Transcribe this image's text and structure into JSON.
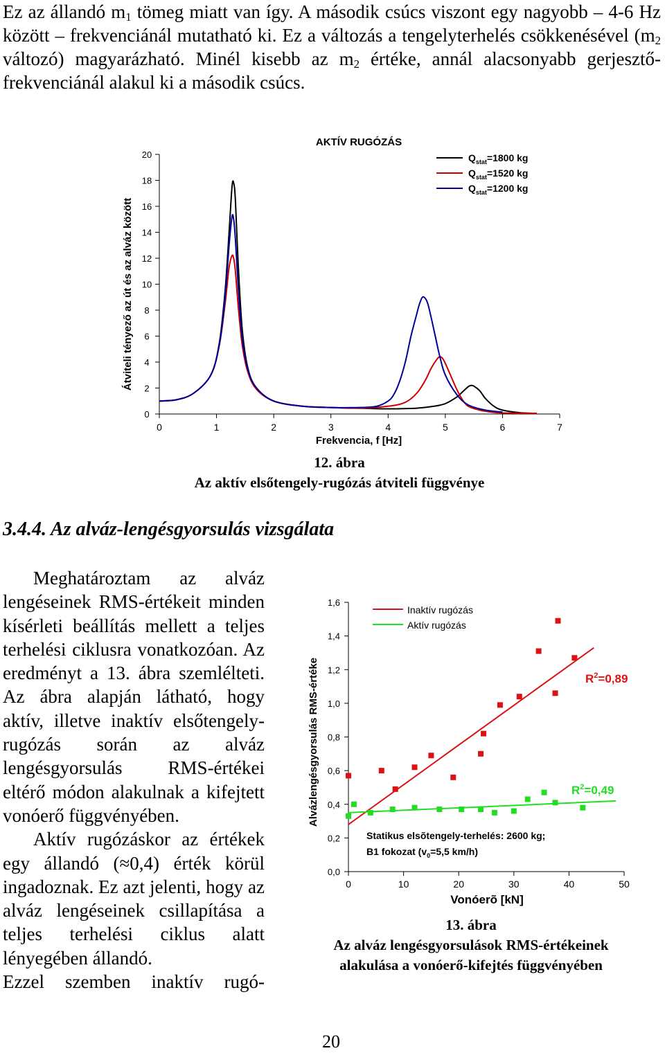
{
  "intro": {
    "p1_a": "Ez az állandó m",
    "p1_sub1": "1",
    "p1_b": " tömeg miatt van így. A második csúcs viszont egy nagyobb – 4-6 Hz között – frekvenciánál mutatható ki. Ez a változás a tengelyterhelés csökkenésével (m",
    "p1_sub2": "2",
    "p1_c": " változó) magyarázható. Minél kisebb az m",
    "p1_sub3": "2",
    "p1_d": " értéke, annál alacsonyabb gerjesztő-frekvenciánál alakul ki a második csúcs."
  },
  "fig12": {
    "caption_num": "12. ábra",
    "caption_title": "Az aktív elsőtengely-rugózás átviteli függvénye"
  },
  "fig13": {
    "caption_num": "13. ábra",
    "caption_line1": "Az alváz lengésgyorsulások RMS-értékeinek",
    "caption_line2": "alakulása a vonóerő-kifejtés függvényében"
  },
  "section": {
    "title": "3.4.4. Az alváz-lengésgyorsulás vizsgálata"
  },
  "body": {
    "p1": "Meghatároztam az alváz lengéseinek RMS-értékeit minden kísérleti beállítás mellett a teljes terhelési ciklusra vonatkozóan. Az eredményt a 13. ábra szemlélteti. Az ábra alapján látható, hogy aktív, illetve inaktív elsőtengely-rugózás során az alváz lengésgyorsulás RMS-értékei eltérő módon alakulnak a kifejtett vonóerő függvényében.",
    "p2": "Aktív rugózáskor az értékek egy állandó (≈0,4) érték körül ingadoznak. Ez azt jelenti, hogy az alváz lengéseinek csillapítása a teljes terhelési ciklus alatt lényegében állandó.",
    "p3": "Ezzel szemben inaktív rugó-"
  },
  "page_number": "20",
  "chart_data": [
    {
      "type": "line",
      "title": "AKTÍV RUGÓZÁS",
      "xlabel": "Frekvencia, f [Hz]",
      "ylabel": "Átviteli tényező az út és az alváz között",
      "xlim": [
        0,
        7
      ],
      "ylim": [
        0,
        20
      ],
      "xticks": [
        "0",
        "1",
        "2",
        "3",
        "4",
        "5",
        "6",
        "7"
      ],
      "yticks": [
        "0",
        "2",
        "4",
        "6",
        "8",
        "10",
        "12",
        "14",
        "16",
        "18",
        "20"
      ],
      "grid": false,
      "legend_position": "top-right",
      "series": [
        {
          "legend_prefix": "Q",
          "legend_sub": "stat",
          "legend_suffix": "=1800 kg",
          "color": "#000000",
          "x": [
            0,
            0.3,
            0.6,
            0.9,
            1.05,
            1.15,
            1.22,
            1.27,
            1.3,
            1.33,
            1.38,
            1.45,
            1.55,
            1.7,
            2.0,
            2.5,
            3.0,
            3.5,
            4.0,
            4.5,
            4.8,
            5.0,
            5.2,
            5.3,
            5.4,
            5.45,
            5.5,
            5.6,
            5.7,
            5.85,
            6.0,
            6.3,
            6.6
          ],
          "y": [
            1.0,
            1.1,
            1.6,
            3.0,
            5.5,
            9.5,
            14.0,
            17.5,
            17.8,
            16.5,
            11.5,
            6.5,
            3.5,
            2.0,
            1.0,
            0.6,
            0.5,
            0.45,
            0.4,
            0.45,
            0.6,
            0.8,
            1.3,
            1.7,
            2.1,
            2.2,
            2.15,
            1.8,
            1.2,
            0.6,
            0.3,
            0.1,
            0.05
          ]
        },
        {
          "legend_prefix": "Q",
          "legend_sub": "stat",
          "legend_suffix": "=1520 kg",
          "color": "#cc0000",
          "x": [
            0,
            0.3,
            0.6,
            0.9,
            1.05,
            1.15,
            1.22,
            1.27,
            1.3,
            1.33,
            1.38,
            1.45,
            1.55,
            1.7,
            2.0,
            2.5,
            3.0,
            3.5,
            4.0,
            4.3,
            4.5,
            4.65,
            4.75,
            4.85,
            4.9,
            4.95,
            5.0,
            5.1,
            5.2,
            5.3,
            5.4,
            5.6,
            5.8,
            6.0,
            6.6
          ],
          "y": [
            1.0,
            1.1,
            1.6,
            3.0,
            5.3,
            8.5,
            11.3,
            12.2,
            12.0,
            11.0,
            8.3,
            5.3,
            3.2,
            1.9,
            1.0,
            0.6,
            0.5,
            0.45,
            0.6,
            0.9,
            1.6,
            2.6,
            3.5,
            4.2,
            4.4,
            4.3,
            3.9,
            2.9,
            1.9,
            1.1,
            0.6,
            0.3,
            0.15,
            0.08,
            0.05
          ]
        },
        {
          "legend_prefix": "Q",
          "legend_sub": "stat",
          "legend_suffix": "=1200 kg",
          "color": "#000099",
          "x": [
            0,
            0.3,
            0.6,
            0.9,
            1.05,
            1.15,
            1.22,
            1.27,
            1.3,
            1.33,
            1.38,
            1.45,
            1.55,
            1.7,
            2.0,
            2.5,
            3.0,
            3.5,
            3.8,
            4.0,
            4.1,
            4.2,
            4.3,
            4.4,
            4.5,
            4.55,
            4.6,
            4.65,
            4.7,
            4.8,
            4.9,
            5.0,
            5.2,
            5.4,
            5.7,
            6.0
          ],
          "y": [
            1.0,
            1.1,
            1.6,
            3.0,
            5.4,
            9.0,
            13.0,
            15.2,
            15.0,
            13.5,
            9.8,
            5.8,
            3.4,
            2.0,
            1.0,
            0.6,
            0.5,
            0.5,
            0.6,
            1.0,
            1.5,
            2.5,
            4.0,
            6.0,
            7.7,
            8.5,
            9.0,
            8.9,
            8.4,
            6.5,
            4.5,
            3.0,
            1.5,
            0.7,
            0.3,
            0.15
          ]
        }
      ]
    },
    {
      "type": "scatter",
      "title": "",
      "xlabel": "Vonóerõ [kN]",
      "ylabel": "Alvázlengésgyorsulás RMS-értéke",
      "xlim": [
        0,
        50
      ],
      "ylim": [
        0,
        1.6
      ],
      "xticks": [
        "0",
        "10",
        "20",
        "30",
        "40",
        "50"
      ],
      "yticks": [
        "0,0",
        "0,2",
        "0,4",
        "0,6",
        "0,8",
        "1,0",
        "1,2",
        "1,4",
        "1,6"
      ],
      "grid": false,
      "legend_position": "top-right",
      "annotation_line1": "Statikus elsõtengely-terhelés: 2600 kg;",
      "annotation_line2_a": "B1 fokozat (v",
      "annotation_line2_sub": "0",
      "annotation_line2_b": "=5,5 km/h)",
      "series": [
        {
          "name": "Inaktív rugózás",
          "color": "#dd1111",
          "x": [
            0,
            6,
            8.5,
            12,
            15,
            19,
            24,
            24.5,
            27.5,
            31,
            34.5,
            37.5,
            38,
            41
          ],
          "y": [
            0.57,
            0.6,
            0.49,
            0.62,
            0.69,
            0.56,
            0.7,
            0.82,
            0.99,
            1.04,
            1.31,
            1.06,
            1.49,
            1.27
          ],
          "fit_x": [
            0,
            44.5
          ],
          "fit_y": [
            0.28,
            1.33
          ],
          "r2_label": "R",
          "r2_exp": "2",
          "r2_value": "=0,89"
        },
        {
          "name": "Aktív rugózás",
          "color": "#22dd22",
          "x": [
            0,
            1,
            4,
            8,
            12,
            16.5,
            20.5,
            24,
            26.5,
            30,
            32.5,
            35.5,
            37.5,
            42.5
          ],
          "y": [
            0.33,
            0.4,
            0.35,
            0.37,
            0.38,
            0.37,
            0.37,
            0.37,
            0.35,
            0.36,
            0.43,
            0.47,
            0.41,
            0.38
          ],
          "fit_x": [
            0,
            48.5
          ],
          "fit_y": [
            0.35,
            0.42
          ],
          "r2_label": "R",
          "r2_exp": "2",
          "r2_value": "=0,49"
        }
      ]
    }
  ]
}
